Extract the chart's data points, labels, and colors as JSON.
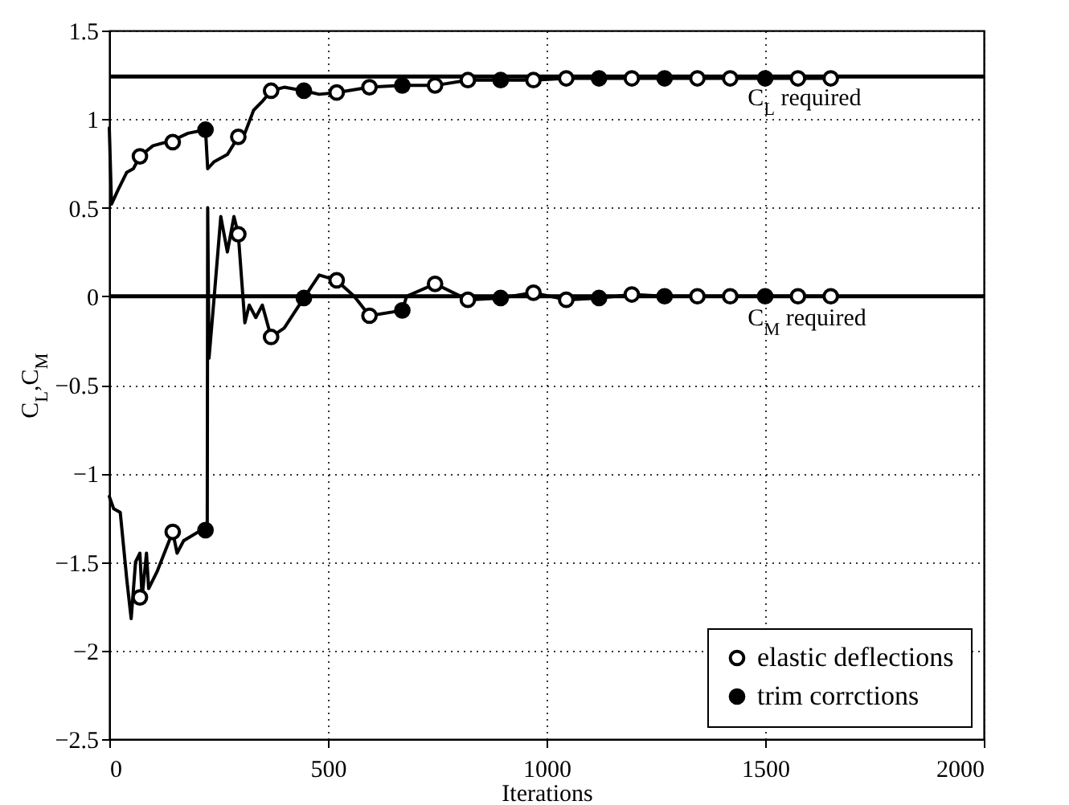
{
  "chart_data": {
    "type": "line",
    "xlabel": "Iterations",
    "ylabel": "C$_{L}$,C$_{M}$",
    "xlim": [
      0,
      2000
    ],
    "xticks": [
      0,
      500,
      1000,
      1500,
      2000
    ],
    "ylim": [
      -2.5,
      1.5
    ],
    "yticks": [
      -2.5,
      -2,
      -1.5,
      -1,
      -0.5,
      0,
      0.5,
      1,
      1.5
    ],
    "grid": true,
    "legend": "bottom right",
    "line_style": "solid",
    "ref_lines": [
      {
        "axis": "y",
        "value": 1.24,
        "label": "C$_{L}$ required",
        "color": "#000000"
      },
      {
        "axis": "y",
        "value": 0,
        "label": "C$_{M}$ required",
        "color": "#000000"
      }
    ],
    "series": [
      {
        "type": "line",
        "color": "#000000",
        "x": [
          0,
          5,
          20,
          40,
          55,
          70,
          100,
          145,
          180,
          220,
          225,
          240,
          270,
          295,
          310,
          330,
          350,
          370,
          400,
          445,
          480,
          520,
          595,
          670,
          745,
          820,
          895,
          970,
          1045,
          1120,
          1195,
          1270,
          1345,
          1420,
          1500,
          1575,
          1650
        ],
        "values": [
          0.95,
          0.52,
          0.6,
          0.7,
          0.72,
          0.79,
          0.85,
          0.88,
          0.92,
          0.94,
          0.72,
          0.76,
          0.8,
          0.9,
          0.92,
          1.05,
          1.1,
          1.16,
          1.18,
          1.16,
          1.14,
          1.15,
          1.18,
          1.19,
          1.19,
          1.22,
          1.22,
          1.22,
          1.23,
          1.23,
          1.23,
          1.23,
          1.23,
          1.23,
          1.23,
          1.23,
          1.23
        ]
      },
      {
        "color": "#000000",
        "x": [
          0,
          10,
          25,
          40,
          50,
          60,
          70,
          75,
          85,
          90,
          110,
          145,
          155,
          170,
          224,
          225,
          228,
          240,
          255,
          270,
          285,
          295,
          310,
          320,
          335,
          350,
          370,
          400,
          445,
          480,
          520,
          560,
          595,
          670,
          680,
          745,
          820,
          895,
          970,
          1045,
          1120,
          1195,
          1270,
          1345,
          1420,
          1500,
          1575,
          1650
        ],
        "values": [
          -1.13,
          -1.2,
          -1.22,
          -1.6,
          -1.82,
          -1.5,
          -1.45,
          -1.7,
          -1.45,
          -1.65,
          -1.55,
          -1.33,
          -1.45,
          -1.38,
          -1.3,
          0.5,
          -0.35,
          0,
          0.45,
          0.25,
          0.45,
          0.35,
          -0.15,
          -0.05,
          -0.12,
          -0.05,
          -0.23,
          -0.18,
          -0.01,
          0.12,
          0.09,
          0,
          -0.11,
          -0.08,
          0,
          0.07,
          -0.02,
          -0.01,
          0.02,
          -0.02,
          -0.01,
          0.01,
          0,
          0,
          0,
          0,
          0,
          0
        ]
      },
      {
        "type": "scatter",
        "name": "elastic deflections",
        "color": "#000000",
        "marker": "circle",
        "x": [
          70,
          145,
          295,
          370,
          520,
          595,
          745,
          820,
          970,
          1045,
          1195,
          1345,
          1420,
          1575,
          1650,
          70,
          145,
          295,
          370,
          520,
          595,
          745,
          820,
          970,
          1045,
          1195,
          1345,
          1420,
          1575,
          1650
        ],
        "values": [
          0.79,
          0.87,
          0.9,
          1.16,
          1.15,
          1.18,
          1.19,
          1.22,
          1.22,
          1.23,
          1.23,
          1.23,
          1.23,
          1.23,
          1.23,
          -1.7,
          -1.33,
          0.35,
          -0.23,
          0.09,
          -0.11,
          0.07,
          -0.02,
          0.02,
          -0.02,
          0.01,
          0,
          0,
          0,
          0
        ]
      },
      {
        "type": "scatter",
        "name": "trim corrctions",
        "color": "#000000",
        "marker": "circle",
        "x": [
          220,
          445,
          670,
          895,
          1120,
          1270,
          1500,
          220,
          445,
          670,
          895,
          1120,
          1270,
          1500
        ],
        "values": [
          0.94,
          1.16,
          1.19,
          1.22,
          1.23,
          1.23,
          1.23,
          -1.32,
          -0.01,
          -0.08,
          -0.01,
          -0.01,
          0,
          0
        ]
      }
    ]
  }
}
